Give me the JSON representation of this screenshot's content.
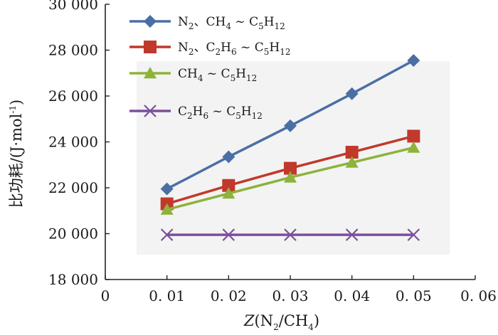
{
  "chart_data": {
    "type": "line",
    "xlabel": "Z(N2/CH4)",
    "ylabel": "比功耗/(J·mol-1)",
    "xlim": [
      0,
      0.06
    ],
    "ylim": [
      18000,
      30000
    ],
    "x_ticks": [
      "0",
      "0. 01",
      "0. 02",
      "0. 03",
      "0. 04",
      "0. 05",
      "0. 06"
    ],
    "y_ticks": [
      "18 000",
      "20 000",
      "22 000",
      "24 000",
      "26 000",
      "28 000",
      "30 000"
    ],
    "x": [
      0.01,
      0.02,
      0.03,
      0.04,
      0.05
    ],
    "grid": false,
    "legend_position": "top-left",
    "series": [
      {
        "name": "N2、CH4 ~ C5H12",
        "color": "#4a6fa5",
        "marker": "diamond",
        "values": [
          21950,
          23350,
          24700,
          26100,
          27550
        ]
      },
      {
        "name": "N2、C2H6 ~ C5H12",
        "color": "#c0392b",
        "marker": "square",
        "values": [
          21300,
          22100,
          22850,
          23550,
          24250
        ]
      },
      {
        "name": "CH4 ~ C5H12",
        "color": "#8db33a",
        "marker": "triangle",
        "values": [
          21050,
          21750,
          22450,
          23100,
          23750
        ]
      },
      {
        "name": "C2H6 ~ C5H12",
        "color": "#7b4f9d",
        "marker": "x",
        "values": [
          19950,
          19950,
          19950,
          19950,
          19950
        ]
      }
    ]
  }
}
